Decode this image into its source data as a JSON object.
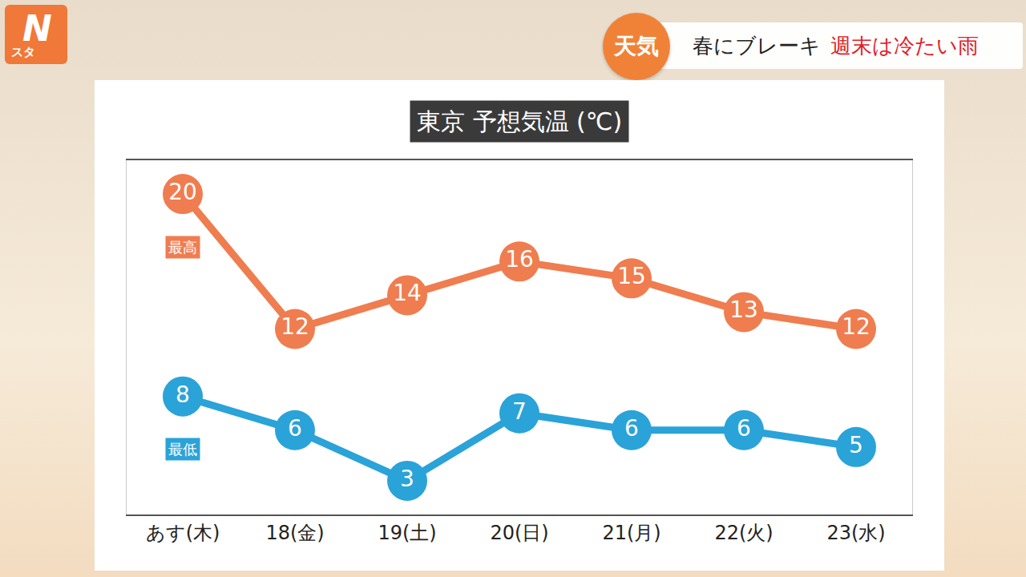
{
  "header": {
    "badge": "天気",
    "headline": "春にブレーキ",
    "highlight": "週末は冷たい雨",
    "logo": "Nスタ"
  },
  "chart_data": {
    "type": "line",
    "title": "東京 予想気温 (℃)",
    "categories": [
      "あす(木)",
      "18(金)",
      "19(土)",
      "20(日)",
      "21(月)",
      "22(火)",
      "23(水)"
    ],
    "series": [
      {
        "name": "最高",
        "color": "#ef7d4f",
        "values": [
          20,
          12,
          14,
          16,
          15,
          13,
          12
        ]
      },
      {
        "name": "最低",
        "color": "#2aa3d8",
        "values": [
          8,
          6,
          3,
          7,
          6,
          6,
          5
        ]
      }
    ],
    "ylim": [
      1,
      22
    ],
    "grid": false,
    "data_labels": true,
    "tick_labels": "x",
    "marker": "circle"
  }
}
